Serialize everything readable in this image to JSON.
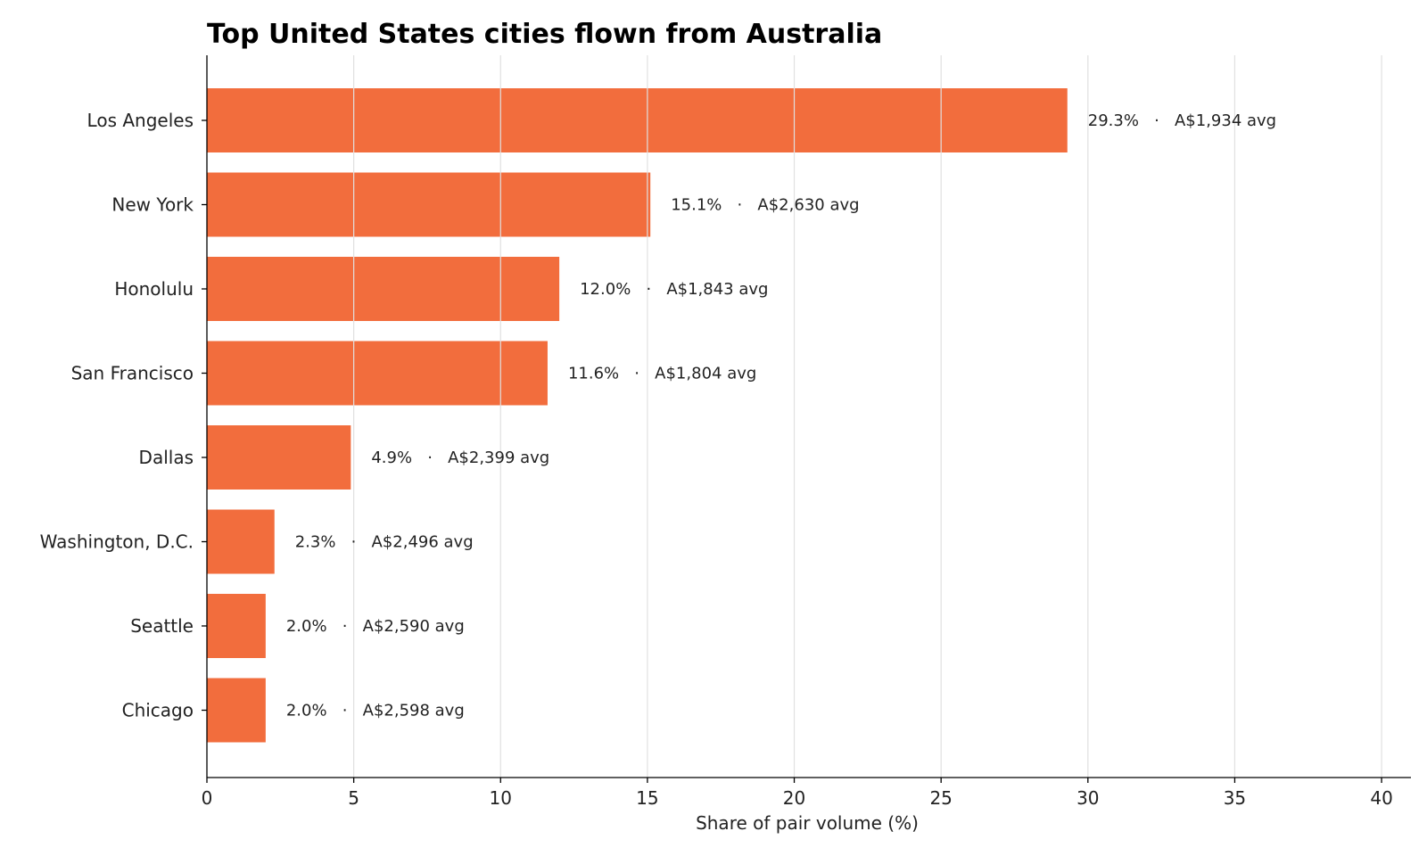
{
  "chart_data": {
    "type": "bar",
    "orientation": "horizontal",
    "title": "Top United States cities flown from Australia",
    "xlabel": "Share of pair volume (%)",
    "ylabel": "",
    "xlim": [
      0,
      41
    ],
    "xticks": [
      0,
      5,
      10,
      15,
      20,
      25,
      30,
      35,
      40
    ],
    "grid": "x",
    "bar_color": "#f26d3d",
    "categories": [
      "Los Angeles",
      "New York",
      "Honolulu",
      "San Francisco",
      "Dallas",
      "Washington, D.C.",
      "Seattle",
      "Chicago"
    ],
    "values": [
      29.3,
      15.1,
      12.0,
      11.6,
      4.9,
      2.3,
      2.0,
      2.0
    ],
    "data_labels": [
      "29.3%   ·   A$1,934 avg",
      "15.1%   ·   A$2,630 avg",
      "12.0%   ·   A$1,843 avg",
      "11.6%   ·   A$1,804 avg",
      "4.9%   ·   A$2,399 avg",
      "2.3%   ·   A$2,496 avg",
      "2.0%   ·   A$2,590 avg",
      "2.0%   ·   A$2,598 avg"
    ]
  }
}
